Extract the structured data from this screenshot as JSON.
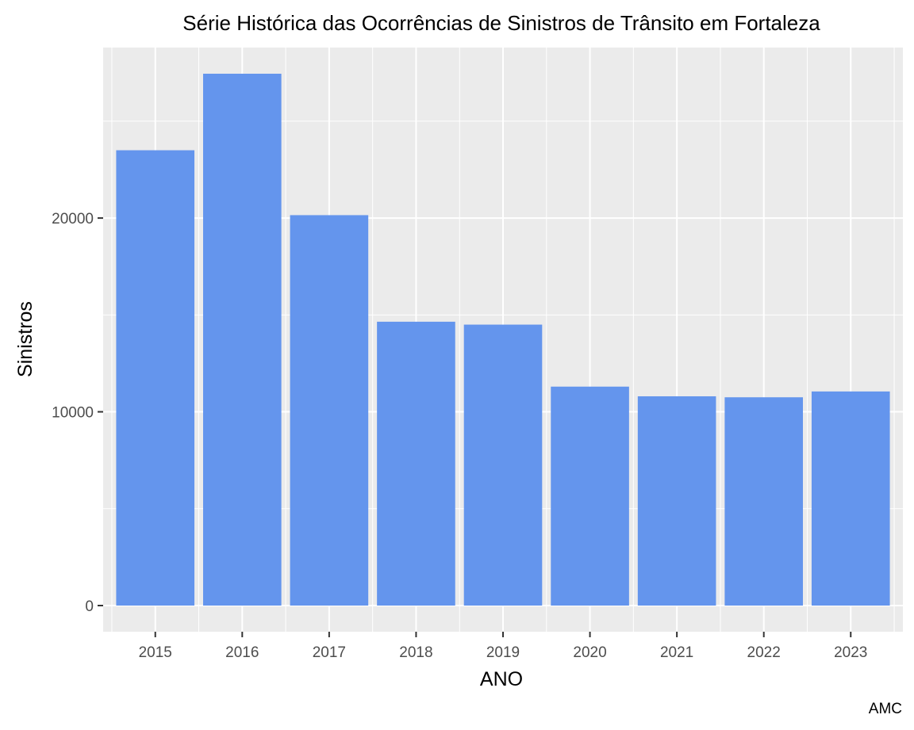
{
  "chart_data": {
    "type": "bar",
    "title": "Série Histórica das Ocorrências de Sinistros de Trânsito em Fortaleza",
    "xlabel": "ANO",
    "ylabel": "Sinistros",
    "caption": "AMC",
    "categories": [
      "2015",
      "2016",
      "2017",
      "2018",
      "2019",
      "2020",
      "2021",
      "2022",
      "2023"
    ],
    "values": [
      23500,
      27450,
      20150,
      14650,
      14500,
      11300,
      10800,
      10750,
      11050
    ],
    "ylim": [
      -1350,
      28800
    ],
    "yticks": [
      0,
      10000,
      20000
    ],
    "ytick_labels": [
      "0",
      "10000",
      "20000"
    ],
    "grid": true,
    "colors": {
      "bar": "#6495ED",
      "panel": "#EBEBEB",
      "grid": "#FFFFFF"
    }
  }
}
